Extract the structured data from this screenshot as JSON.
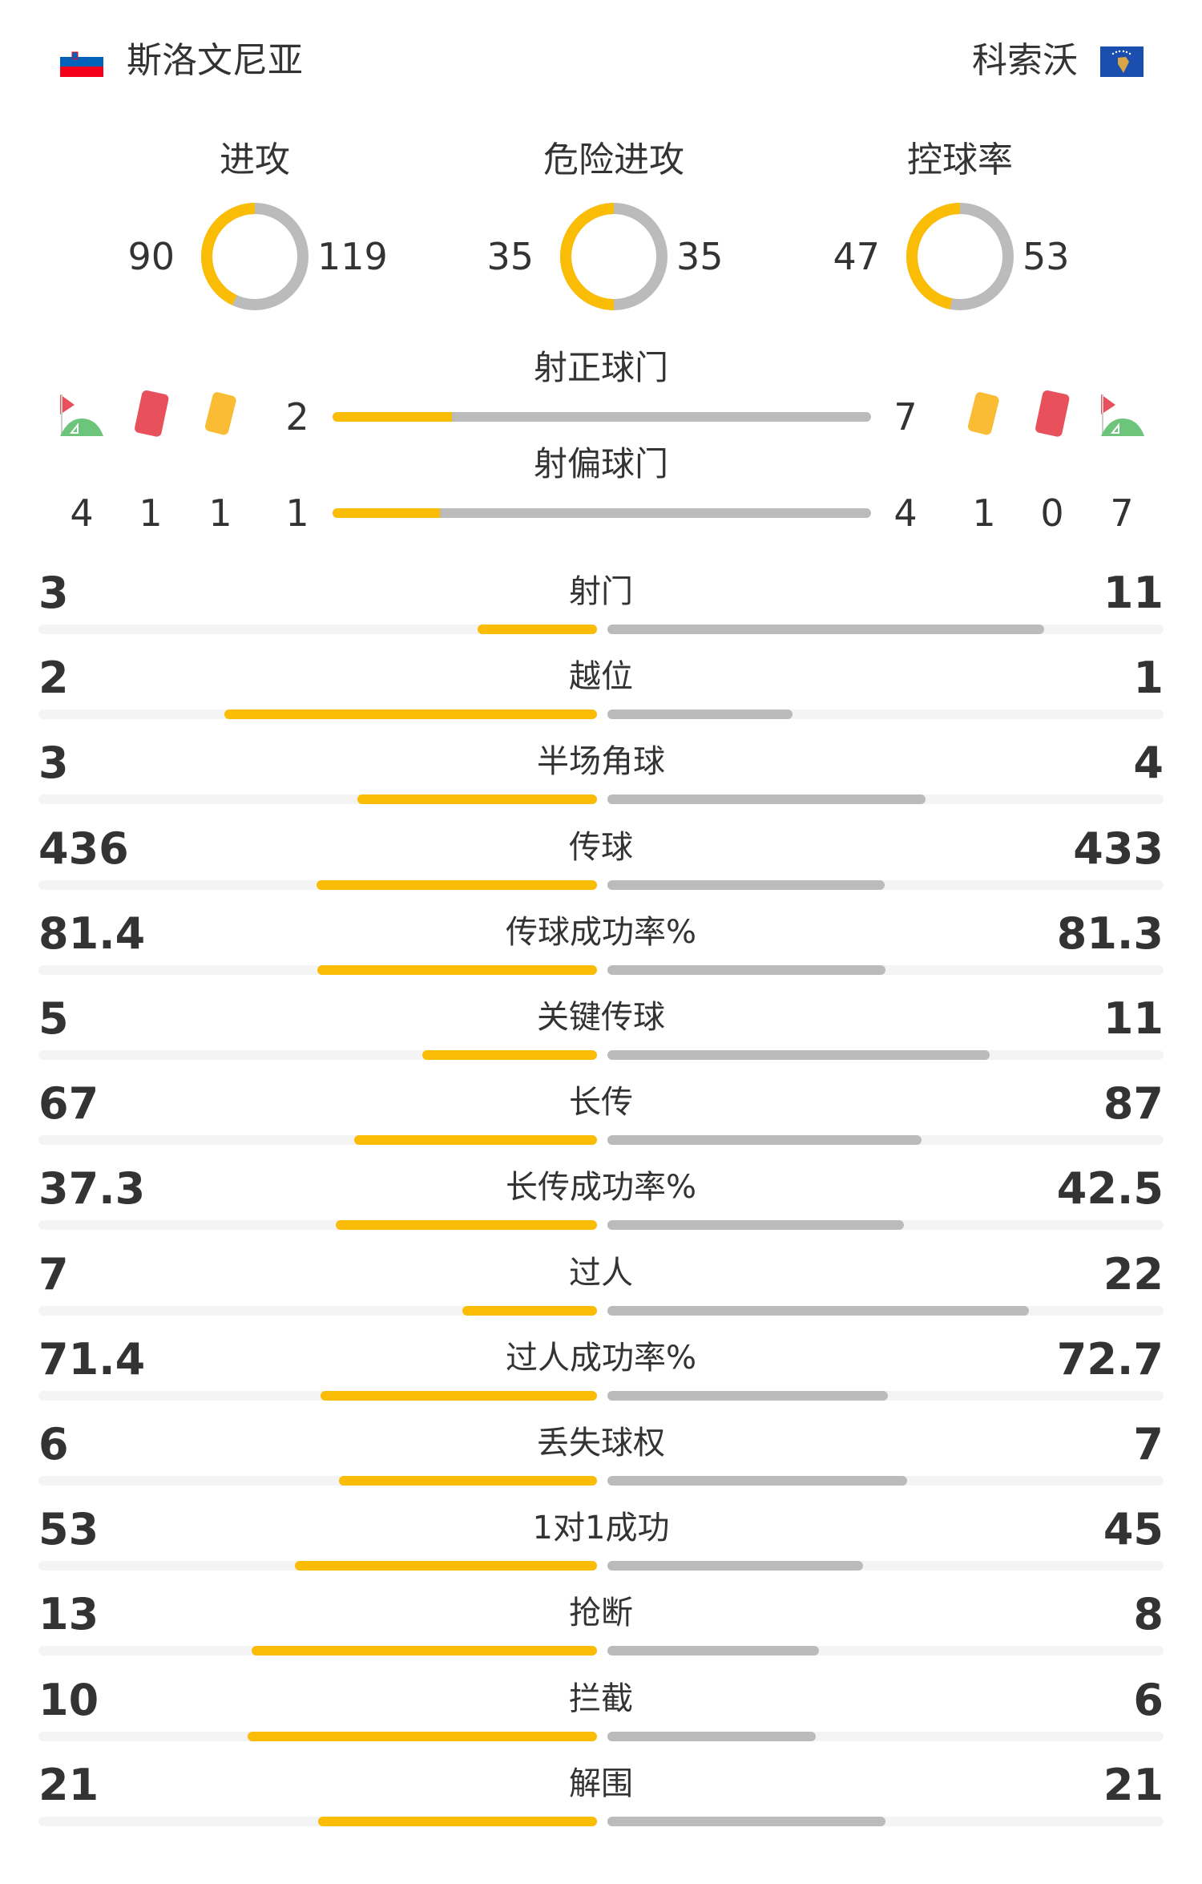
{
  "teams": {
    "home": {
      "name": "斯洛文尼亚",
      "flag": "slovenia-flag"
    },
    "away": {
      "name": "科索沃",
      "flag": "kosovo-flag"
    }
  },
  "colors": {
    "home": "#FBBC05",
    "away": "#BBBBBB",
    "track": "#F4F4F4",
    "red_card": "#E8505B",
    "yellow_card": "#FBBC35",
    "corner_green": "#6CC57A"
  },
  "donuts": [
    {
      "label": "进攻",
      "home": 90,
      "away": 119
    },
    {
      "label": "危险进攻",
      "home": 35,
      "away": 35
    },
    {
      "label": "控球率",
      "home": 47,
      "away": 53
    }
  ],
  "shots_on_target": {
    "label": "射正球门",
    "home": 2,
    "away": 7
  },
  "shots_off_target": {
    "label": "射偏球门",
    "home": 1,
    "away": 4
  },
  "events": {
    "home": {
      "corners": 4,
      "red_cards": 1,
      "yellow_cards": 1
    },
    "away": {
      "yellow_cards": 1,
      "red_cards": 0,
      "corners": 7
    }
  },
  "stats": [
    {
      "label": "射门",
      "home": "3",
      "away": "11"
    },
    {
      "label": "越位",
      "home": "2",
      "away": "1"
    },
    {
      "label": "半场角球",
      "home": "3",
      "away": "4"
    },
    {
      "label": "传球",
      "home": "436",
      "away": "433"
    },
    {
      "label": "传球成功率%",
      "home": "81.4",
      "away": "81.3"
    },
    {
      "label": "关键传球",
      "home": "5",
      "away": "11"
    },
    {
      "label": "长传",
      "home": "67",
      "away": "87"
    },
    {
      "label": "长传成功率%",
      "home": "37.3",
      "away": "42.5"
    },
    {
      "label": "过人",
      "home": "7",
      "away": "22"
    },
    {
      "label": "过人成功率%",
      "home": "71.4",
      "away": "72.7"
    },
    {
      "label": "丢失球权",
      "home": "6",
      "away": "7"
    },
    {
      "label": "1对1成功",
      "home": "53",
      "away": "45"
    },
    {
      "label": "抢断",
      "home": "13",
      "away": "8"
    },
    {
      "label": "拦截",
      "home": "10",
      "away": "6"
    },
    {
      "label": "解围",
      "home": "21",
      "away": "21"
    }
  ]
}
